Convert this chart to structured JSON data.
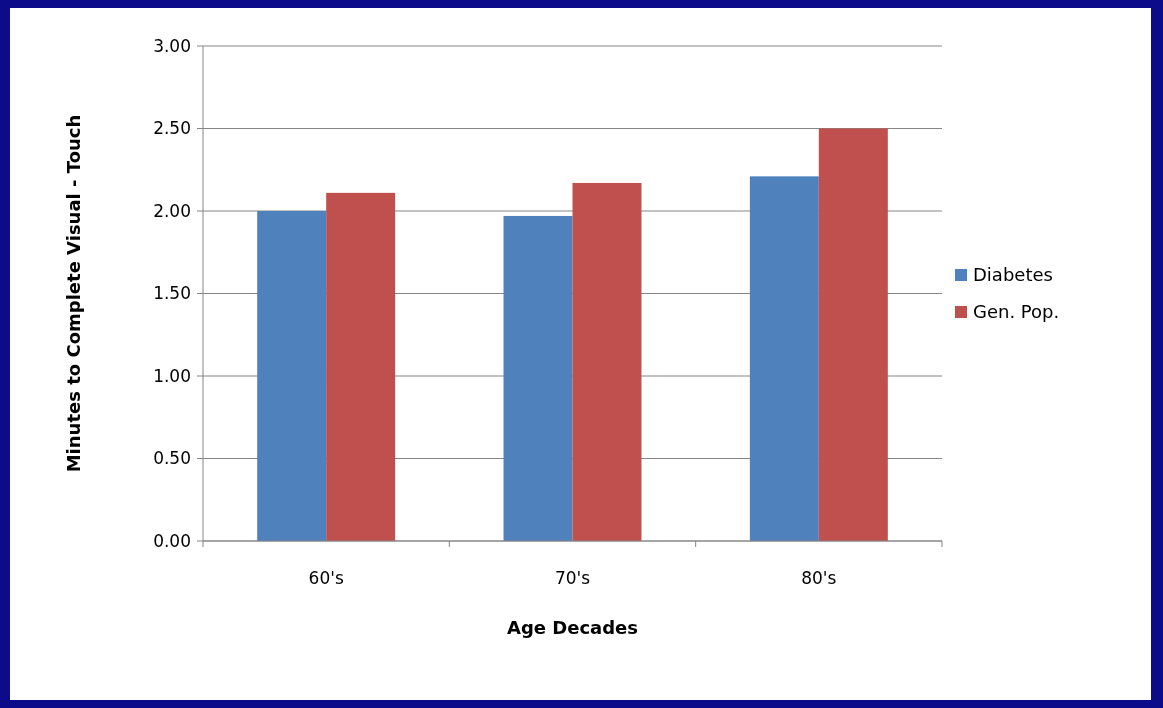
{
  "chart_data": {
    "type": "bar",
    "xlabel": "Age Decades",
    "ylabel": "Minutes to Complete Visual - Touch",
    "categories": [
      "60's",
      "70's",
      "80's"
    ],
    "series": [
      {
        "name": "Diabetes",
        "color": "#4f81bd",
        "values": [
          2.0,
          1.97,
          2.21
        ]
      },
      {
        "name": "Gen. Pop.",
        "color": "#c0504d",
        "values": [
          2.11,
          2.17,
          2.5
        ]
      }
    ],
    "ylim": [
      0,
      3
    ],
    "yticks": [
      {
        "value": 0,
        "label": "0.00"
      },
      {
        "value": 0.5,
        "label": "0.50"
      },
      {
        "value": 1,
        "label": "1.00"
      },
      {
        "value": 1.5,
        "label": "1.50"
      },
      {
        "value": 2,
        "label": "2.00"
      },
      {
        "value": 2.5,
        "label": "2.50"
      },
      {
        "value": 3,
        "label": "3.00"
      }
    ],
    "grid": "y",
    "legend": "right"
  }
}
